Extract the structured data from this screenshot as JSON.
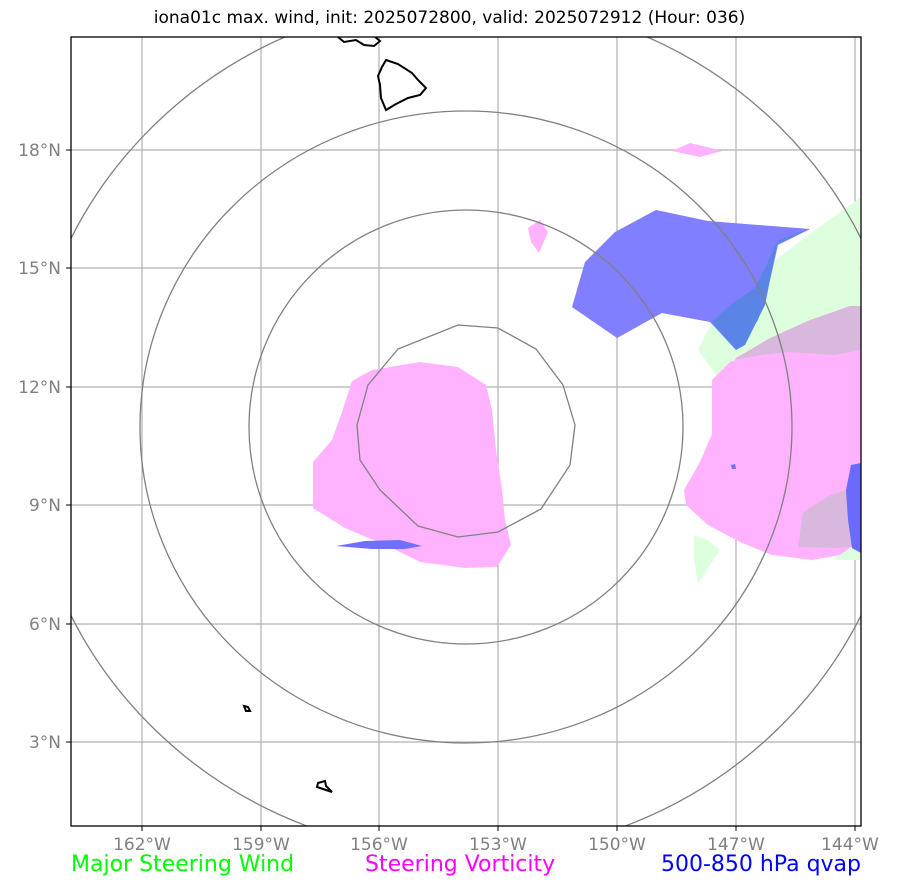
{
  "title": "iona01c max. wind, init: 2025072800, valid: 2025072912 (Hour: 036)",
  "axes": {
    "lat_labels": [
      "18°N",
      "15°N",
      "12°N",
      "9°N",
      "6°N",
      "3°N"
    ],
    "lon_labels": [
      "162°W",
      "159°W",
      "156°W",
      "153°W",
      "150°W",
      "147°W",
      "144°W"
    ]
  },
  "legend": {
    "items": [
      {
        "label": "Major Steering Wind",
        "color": "#00ff00"
      },
      {
        "label": "Steering Vorticity",
        "color": "#ff00ff"
      },
      {
        "label": "500-850 hPa qvap",
        "color": "#0000ff"
      }
    ]
  },
  "colors": {
    "vorticity_fill": "#ffb3ff",
    "wind_fill": "#ddffdd",
    "qvap_fill": "#7070ff",
    "range_ring": "#808080",
    "grid": "#b0b0b0",
    "coastline": "#000000"
  },
  "map": {
    "projection": "lat-lon",
    "lat_range": [
      "1°N",
      "20°N"
    ],
    "lon_range": [
      "164°W",
      "144°W"
    ],
    "range_ring_count": 4,
    "grid": true
  }
}
